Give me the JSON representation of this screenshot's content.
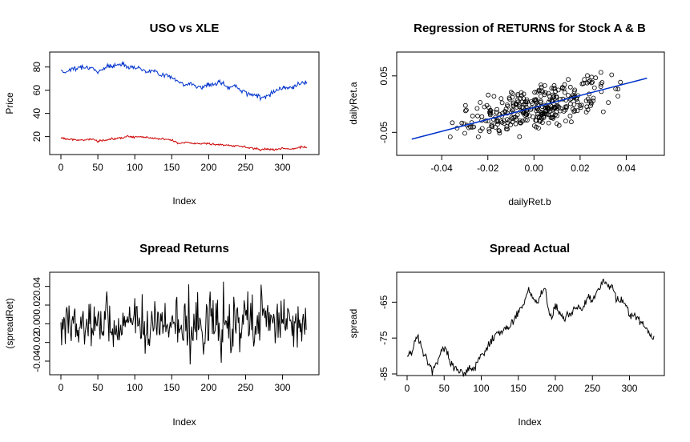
{
  "chart_data": [
    {
      "type": "line",
      "title": "USO vs XLE",
      "xlabel": "Index",
      "ylabel": "Price",
      "xlim": [
        0,
        333
      ],
      "ylim": [
        8,
        86
      ],
      "x_ticks": [
        0,
        50,
        100,
        150,
        200,
        250,
        300
      ],
      "y_ticks": [
        20,
        40,
        60,
        80
      ],
      "series": [
        {
          "color": "#0033cc",
          "x": [
            0,
            5,
            10,
            15,
            20,
            25,
            30,
            35,
            40,
            45,
            50,
            55,
            60,
            65,
            70,
            75,
            80,
            85,
            90,
            95,
            100,
            105,
            110,
            115,
            120,
            125,
            130,
            135,
            140,
            145,
            150,
            155,
            160,
            165,
            170,
            175,
            180,
            185,
            190,
            195,
            200,
            205,
            210,
            215,
            220,
            225,
            230,
            235,
            240,
            245,
            250,
            255,
            260,
            265,
            270,
            275,
            280,
            285,
            290,
            295,
            300,
            305,
            310,
            315,
            320,
            325,
            330
          ],
          "y": [
            78,
            75,
            77,
            79,
            78,
            80,
            81,
            80,
            79,
            77,
            76,
            78,
            80,
            81,
            80,
            82,
            83,
            82,
            81,
            80,
            80,
            79,
            78,
            77,
            76,
            77,
            75,
            74,
            73,
            72,
            71,
            70,
            67,
            65,
            64,
            66,
            65,
            63,
            62,
            64,
            65,
            64,
            66,
            67,
            65,
            63,
            62,
            64,
            62,
            60,
            58,
            57,
            55,
            56,
            53,
            55,
            56,
            57,
            60,
            61,
            62,
            63,
            62,
            63,
            65,
            66,
            67
          ]
        },
        {
          "color": "#cc0000",
          "x": [
            0,
            10,
            20,
            30,
            40,
            50,
            60,
            70,
            80,
            90,
            100,
            110,
            120,
            130,
            140,
            150,
            160,
            170,
            180,
            190,
            200,
            210,
            220,
            230,
            240,
            250,
            260,
            270,
            280,
            290,
            300,
            310,
            320,
            330
          ],
          "y": [
            19,
            18,
            17,
            17,
            18,
            16,
            17,
            18,
            19,
            20,
            20,
            20,
            19,
            18,
            18,
            17,
            14,
            15,
            14,
            14,
            14,
            13,
            13,
            12,
            12,
            11,
            10,
            9,
            9,
            9,
            10,
            9,
            10,
            11
          ]
        }
      ]
    },
    {
      "type": "scatter",
      "title": "Regression of RETURNS for Stock A & B",
      "xlabel": "dailyRet.b",
      "ylabel": "dailyRet.a",
      "xlim": [
        -0.055,
        0.052
      ],
      "ylim": [
        -0.085,
        0.088
      ],
      "x_ticks": [
        -0.04,
        -0.02,
        0.0,
        0.02,
        0.04
      ],
      "x_tick_labels": [
        "-0.04",
        "-0.02",
        "0.00",
        "0.02",
        "0.04"
      ],
      "y_ticks": [
        -0.05,
        0.05
      ],
      "y_tick_labels": [
        "-0.05",
        "0.05"
      ],
      "regression_line": {
        "x": [
          -0.053,
          0.049
        ],
        "y": [
          -0.062,
          0.046
        ],
        "color": "#0033cc"
      },
      "points_count": 333
    },
    {
      "type": "line",
      "title": "Spread Returns",
      "xlabel": "Index",
      "ylabel": "(spreadRet)",
      "xlim": [
        0,
        333
      ],
      "ylim": [
        -0.052,
        0.05
      ],
      "x_ticks": [
        0,
        50,
        100,
        150,
        200,
        250,
        300
      ],
      "y_ticks": [
        -0.04,
        -0.02,
        0.0,
        0.02,
        0.04
      ],
      "y_tick_labels": [
        "-0.04",
        "-0.02",
        "0.00",
        "0.02",
        "0.04"
      ],
      "series": [
        {
          "color": "#000000",
          "points_count": 333
        }
      ]
    },
    {
      "type": "line",
      "title": "Spread Actual",
      "xlabel": "Index",
      "ylabel": "spread",
      "xlim": [
        0,
        333
      ],
      "ylim": [
        -85,
        -58
      ],
      "x_ticks": [
        0,
        50,
        100,
        150,
        200,
        250,
        300
      ],
      "y_ticks": [
        -85,
        -75,
        -65
      ],
      "y_tick_labels": [
        "-85",
        "-75",
        "-65"
      ],
      "series": [
        {
          "color": "#000000",
          "x": [
            0,
            8,
            14,
            20,
            28,
            34,
            40,
            46,
            52,
            58,
            64,
            70,
            78,
            84,
            90,
            100,
            110,
            120,
            130,
            140,
            150,
            158,
            164,
            170,
            176,
            180,
            186,
            190,
            196,
            200,
            206,
            212,
            220,
            228,
            236,
            244,
            250,
            256,
            262,
            266,
            270,
            276,
            282,
            290,
            296,
            300,
            306,
            312,
            318,
            324,
            330
          ],
          "y": [
            -80,
            -78,
            -74,
            -78,
            -82,
            -84,
            -82,
            -79,
            -78,
            -82,
            -83,
            -84,
            -85,
            -84,
            -83,
            -80,
            -77,
            -74,
            -73,
            -71,
            -68,
            -65,
            -61,
            -64,
            -65,
            -63,
            -61,
            -67,
            -69,
            -66,
            -68,
            -70,
            -68,
            -66,
            -67,
            -64,
            -65,
            -62,
            -60,
            -59,
            -61,
            -60,
            -64,
            -65,
            -66,
            -69,
            -68,
            -70,
            -71,
            -73,
            -75
          ]
        }
      ]
    }
  ]
}
